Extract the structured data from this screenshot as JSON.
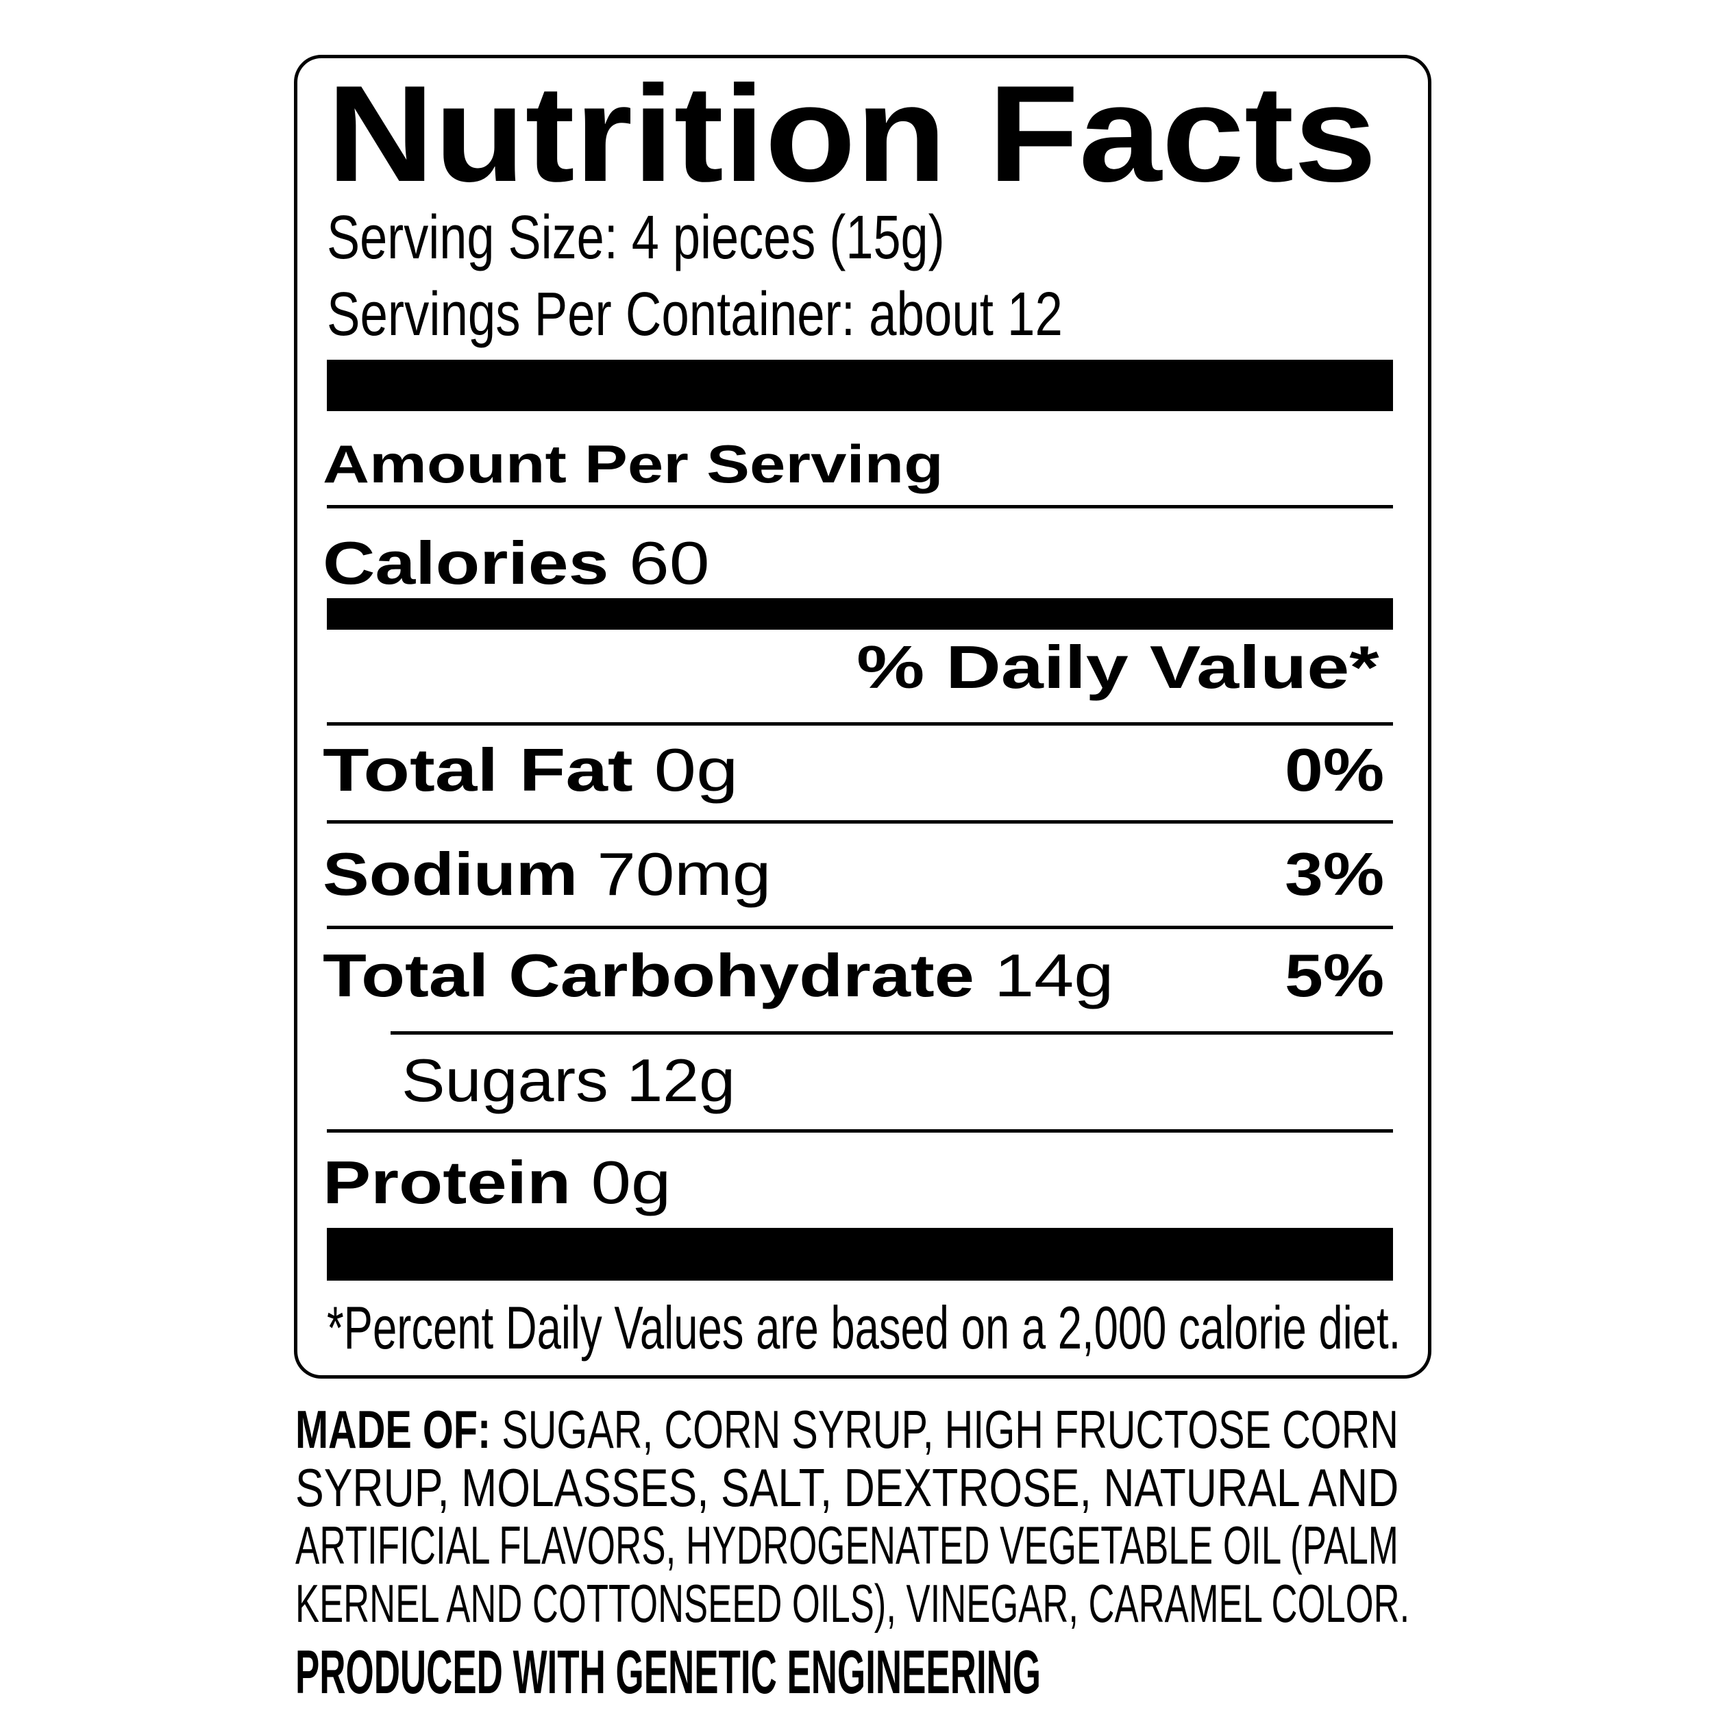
{
  "label": {
    "title": "Nutrition Facts",
    "serving_size": "Serving Size: 4 pieces (15g)",
    "servings_per_container": "Servings Per Container: about 12",
    "amount_per_serving": "Amount Per Serving",
    "calories": {
      "label": "Calories",
      "value": "60"
    },
    "daily_value_header": "% Daily Value*",
    "nutrients": [
      {
        "label": "Total Fat",
        "amount": "0g",
        "dv": "0%"
      },
      {
        "label": "Sodium",
        "amount": "70mg",
        "dv": "3%"
      },
      {
        "label": "Total Carbohydrate",
        "amount": "14g",
        "dv": "5%"
      },
      {
        "label": "Sugars",
        "amount": "12g"
      },
      {
        "label": "Protein",
        "amount": "0g"
      }
    ],
    "footnote": "*Percent Daily Values are based on a 2,000 calorie diet."
  },
  "ingredients": {
    "heading": "MADE OF:",
    "lines": [
      " SUGAR, CORN SYRUP, HIGH FRUCTOSE CORN",
      "SYRUP, MOLASSES, SALT, DEXTROSE, NATURAL AND",
      "ARTIFICIAL FLAVORS, HYDROGENATED VEGETABLE OIL (PALM",
      "KERNEL AND COTTONSEED OILS), VINEGAR, CARAMEL COLOR."
    ]
  },
  "disclosure": "PRODUCED WITH GENETIC ENGINEERING"
}
